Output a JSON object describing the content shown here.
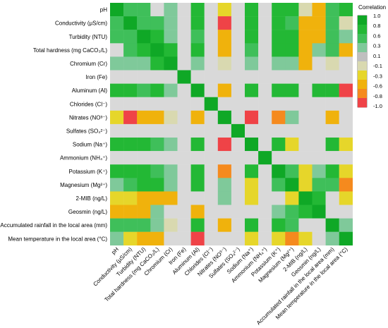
{
  "chart_data": {
    "type": "heatmap",
    "title": "",
    "labels": [
      "pH",
      "Conductivity (μS/cm)",
      "Turbidity (NTU)",
      "Total hardness (mg CaCO₃/L)",
      "Chromium (Cr)",
      "Iron (Fe)",
      "Aluminum (Al)",
      "Chlorides  (Cl⁻)",
      "Nitrates (NO³⁻)",
      "Sulfates (SO₄²⁻)",
      "Sodium (Na⁺)",
      "Ammonium (NH₄⁺)",
      "Potassium (K⁺)",
      "Magnesium (Mg²⁺)",
      "2-MIB (ng/L)",
      "Geosmin (ng/L)",
      "Accumulated rainfall in the local area (mm)",
      "Mean temperature in the local area (°C)"
    ],
    "matrix": [
      [
        1.0,
        0.6,
        0.6,
        0,
        0.3,
        0,
        0.9,
        0,
        -0.2,
        0,
        0.9,
        0,
        0.9,
        0.9,
        -0.1,
        -0.5,
        0.5,
        0.9
      ],
      [
        0.6,
        1.0,
        0.6,
        0.6,
        0.2,
        0,
        0.9,
        0,
        -1.0,
        0,
        0.9,
        0,
        0.9,
        0.6,
        -0.5,
        -0.5,
        0.5,
        -0.1
      ],
      [
        0.6,
        0.6,
        1.0,
        0.9,
        0.2,
        0,
        0.6,
        0,
        -0.6,
        0,
        0.9,
        0,
        0.9,
        0.9,
        -0.5,
        -0.5,
        0.6,
        0.2
      ],
      [
        0,
        0.6,
        0.9,
        1.0,
        0.9,
        0,
        0.9,
        0,
        -0.6,
        0,
        0.6,
        0,
        0.9,
        0.9,
        -0.5,
        0.3,
        0.6,
        -0.6
      ],
      [
        0.3,
        0.2,
        0.2,
        0.9,
        1.0,
        0,
        0.2,
        0,
        -0.1,
        0,
        0.2,
        0,
        0.2,
        0.2,
        -0.6,
        0,
        -0.1,
        0
      ],
      [
        0,
        0,
        0,
        0,
        0,
        1.0,
        0,
        0,
        0,
        0,
        0,
        0,
        0,
        0,
        0,
        0,
        0,
        0
      ],
      [
        0.9,
        0.9,
        0.6,
        0.9,
        0.2,
        0,
        1.0,
        0,
        -0.5,
        0,
        0.9,
        0,
        0.9,
        0.9,
        0,
        0.9,
        0.9,
        -1.0
      ],
      [
        0,
        0,
        0,
        0,
        0,
        0,
        0,
        1.0,
        0,
        0,
        0,
        0,
        0,
        0,
        0,
        0,
        0,
        0
      ],
      [
        -0.2,
        -1.0,
        -0.6,
        -0.6,
        -0.1,
        0,
        -0.5,
        0,
        1.0,
        0,
        -1.0,
        0,
        -0.9,
        0.2,
        0,
        0,
        -0.5,
        0
      ],
      [
        0,
        0,
        0,
        0,
        0,
        0,
        0,
        0,
        0,
        1.0,
        0,
        0,
        0,
        0,
        0,
        0,
        0,
        0
      ],
      [
        0.9,
        0.9,
        0.9,
        0.6,
        0.2,
        0,
        0.9,
        0,
        -1.0,
        0,
        1.0,
        0,
        0.9,
        -0.2,
        0,
        0,
        0.9,
        -0.2
      ],
      [
        0,
        0,
        0,
        0,
        0,
        0,
        0,
        0,
        0,
        0,
        0,
        1.0,
        0,
        0,
        0,
        0,
        0,
        0
      ],
      [
        0.9,
        0.9,
        0.9,
        0.6,
        0.2,
        0,
        0.9,
        0,
        -0.9,
        0,
        0.9,
        0,
        1.0,
        0.6,
        -0.2,
        0.3,
        0.9,
        -0.2
      ],
      [
        0.2,
        0.6,
        0.9,
        0.9,
        0.2,
        0,
        0.9,
        0,
        0.2,
        0,
        -0.2,
        0,
        0.6,
        1.0,
        -0.2,
        0.6,
        0.6,
        -0.9
      ],
      [
        -0.2,
        -0.2,
        -0.5,
        -0.5,
        -0.6,
        0,
        0,
        0,
        0.2,
        0,
        -0.2,
        0,
        0,
        -0.2,
        1.0,
        0.9,
        0,
        -0.2
      ],
      [
        -0.5,
        -0.5,
        -0.5,
        0.3,
        0,
        0,
        -0.5,
        0,
        0,
        0,
        0,
        0,
        0.3,
        0.6,
        0.9,
        1.0,
        0,
        0
      ],
      [
        0.5,
        0.5,
        0.6,
        0.2,
        -0.1,
        0,
        0.9,
        0,
        -0.5,
        0,
        0.9,
        0,
        0.9,
        0.6,
        0,
        0,
        1.0,
        0.3
      ],
      [
        0.2,
        -0.2,
        -0.5,
        -0.6,
        0,
        0,
        -1.0,
        0,
        0,
        0,
        -0.2,
        0,
        -0.2,
        -0.9,
        -0.2,
        0,
        0.3,
        1.0
      ]
    ],
    "legend": {
      "title": "Correlation",
      "ticks": [
        "1.0",
        "0.8",
        "0.6",
        "0.3",
        "0.1",
        "-0.1",
        "-0.3",
        "-0.6",
        "-0.8",
        "-1.0"
      ],
      "colors": [
        "#0fa826",
        "#23b835",
        "#3fbf5a",
        "#7fc99a",
        "#bfbfbf",
        "#d9d9b0",
        "#e6d62a",
        "#f0b20c",
        "#f58a1e",
        "#ef4347"
      ],
      "neutral_color": "#d9d9d9"
    }
  }
}
